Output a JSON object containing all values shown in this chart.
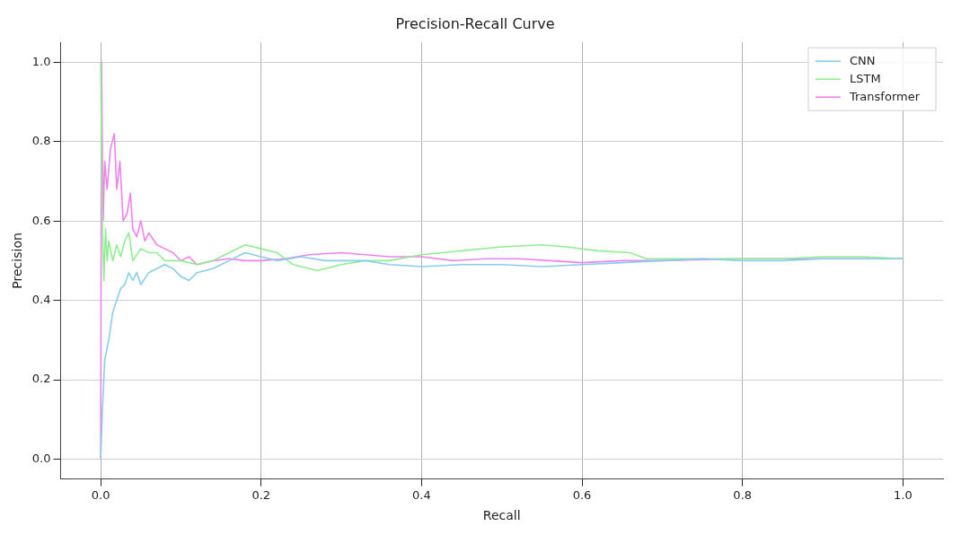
{
  "chart_data": {
    "type": "line",
    "title": "Precision-Recall Curve",
    "xlabel": "Recall",
    "ylabel": "Precision",
    "xlim": [
      -0.05,
      1.05
    ],
    "ylim": [
      -0.05,
      1.05
    ],
    "xticks": [
      {
        "value": 0,
        "label": "0.0"
      },
      {
        "value": 0.2,
        "label": "0.2"
      },
      {
        "value": 0.4,
        "label": "0.4"
      },
      {
        "value": 0.6,
        "label": "0.6"
      },
      {
        "value": 0.8,
        "label": "0.8"
      },
      {
        "value": 1,
        "label": "1.0"
      }
    ],
    "yticks": [
      {
        "value": 0,
        "label": "0.0"
      },
      {
        "value": 0.2,
        "label": "0.2"
      },
      {
        "value": 0.4,
        "label": "0.4"
      },
      {
        "value": 0.6,
        "label": "0.6"
      },
      {
        "value": 0.8,
        "label": "0.8"
      },
      {
        "value": 1,
        "label": "1.0"
      }
    ],
    "grid": true,
    "legend": "top right",
    "marker": "none",
    "line_style": "solid",
    "series": [
      {
        "name": "CNN",
        "color": "#87ceeb",
        "x": [
          0,
          0.002,
          0.005,
          0.01,
          0.015,
          0.02,
          0.025,
          0.03,
          0.035,
          0.04,
          0.045,
          0.05,
          0.06,
          0.07,
          0.08,
          0.09,
          0.1,
          0.11,
          0.12,
          0.14,
          0.16,
          0.18,
          0.2,
          0.22,
          0.25,
          0.28,
          0.3,
          0.33,
          0.36,
          0.4,
          0.45,
          0.5,
          0.55,
          0.6,
          0.65,
          0.7,
          0.75,
          0.8,
          0.85,
          0.9,
          0.95,
          1.0
        ],
        "values": [
          0,
          0.12,
          0.25,
          0.3,
          0.37,
          0.4,
          0.43,
          0.44,
          0.47,
          0.45,
          0.47,
          0.44,
          0.47,
          0.48,
          0.49,
          0.48,
          0.46,
          0.45,
          0.47,
          0.48,
          0.5,
          0.52,
          0.51,
          0.5,
          0.51,
          0.5,
          0.5,
          0.5,
          0.49,
          0.485,
          0.49,
          0.49,
          0.485,
          0.49,
          0.495,
          0.5,
          0.505,
          0.5,
          0.5,
          0.505,
          0.505,
          0.505
        ]
      },
      {
        "name": "LSTM",
        "color": "#90ee90",
        "x": [
          0,
          0.002,
          0.004,
          0.006,
          0.008,
          0.01,
          0.015,
          0.02,
          0.025,
          0.03,
          0.035,
          0.04,
          0.05,
          0.06,
          0.07,
          0.08,
          0.1,
          0.12,
          0.14,
          0.16,
          0.18,
          0.2,
          0.22,
          0.24,
          0.27,
          0.3,
          0.33,
          0.36,
          0.4,
          0.45,
          0.5,
          0.55,
          0.58,
          0.62,
          0.66,
          0.68,
          0.75,
          0.8,
          0.85,
          0.9,
          0.95,
          1.0
        ],
        "values": [
          1.0,
          0.6,
          0.45,
          0.58,
          0.5,
          0.55,
          0.5,
          0.54,
          0.51,
          0.55,
          0.57,
          0.5,
          0.53,
          0.52,
          0.52,
          0.5,
          0.5,
          0.49,
          0.5,
          0.52,
          0.54,
          0.53,
          0.52,
          0.49,
          0.475,
          0.49,
          0.5,
          0.5,
          0.515,
          0.525,
          0.535,
          0.54,
          0.535,
          0.525,
          0.52,
          0.505,
          0.505,
          0.505,
          0.505,
          0.51,
          0.51,
          0.505
        ]
      },
      {
        "name": "Transformer",
        "color": "#ee82ee",
        "x": [
          0,
          0.001,
          0.003,
          0.005,
          0.008,
          0.012,
          0.017,
          0.02,
          0.024,
          0.028,
          0.033,
          0.037,
          0.04,
          0.045,
          0.05,
          0.055,
          0.06,
          0.07,
          0.08,
          0.09,
          0.1,
          0.11,
          0.12,
          0.14,
          0.16,
          0.18,
          0.2,
          0.23,
          0.26,
          0.3,
          0.33,
          0.36,
          0.4,
          0.44,
          0.48,
          0.52,
          0.56,
          0.6,
          0.65,
          0.7,
          0.8,
          0.9,
          1.0
        ],
        "values": [
          0,
          1.0,
          0.6,
          0.75,
          0.68,
          0.78,
          0.82,
          0.68,
          0.75,
          0.6,
          0.62,
          0.67,
          0.58,
          0.56,
          0.6,
          0.55,
          0.57,
          0.54,
          0.53,
          0.52,
          0.5,
          0.51,
          0.49,
          0.5,
          0.505,
          0.5,
          0.5,
          0.505,
          0.515,
          0.52,
          0.515,
          0.51,
          0.51,
          0.5,
          0.505,
          0.505,
          0.5,
          0.495,
          0.5,
          0.5,
          0.505,
          0.505,
          0.505
        ]
      }
    ]
  }
}
